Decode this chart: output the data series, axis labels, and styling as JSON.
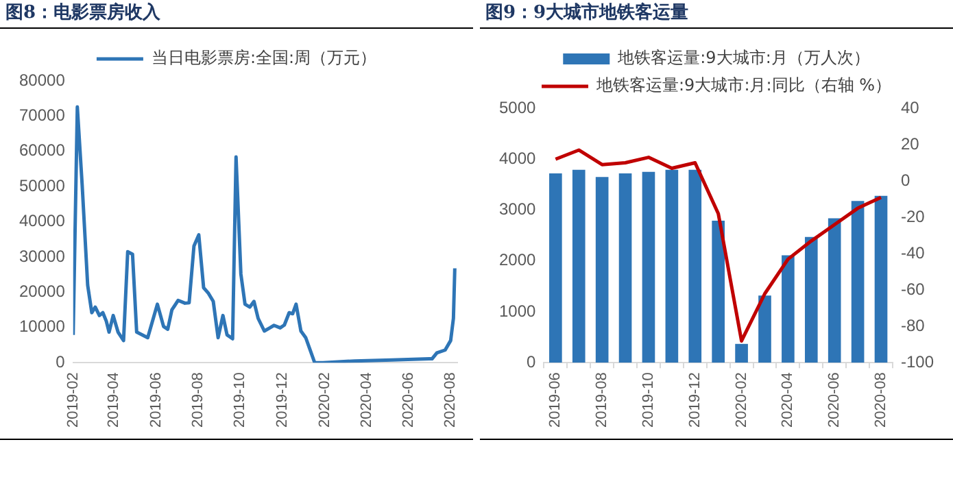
{
  "chart_data": [
    {
      "type": "line",
      "title": "图8：电影票房收入",
      "legend": "top",
      "marker": "none",
      "grid": false,
      "xlim": [
        "2019-02-01",
        "2020-08-11"
      ],
      "xticks": [
        "2019-02",
        "2019-04",
        "2019-06",
        "2019-08",
        "2019-10",
        "2019-12",
        "2020-02",
        "2020-04",
        "2020-06",
        "2020-08"
      ],
      "ylim": [
        0,
        80000
      ],
      "yticks": [
        0,
        10000,
        20000,
        30000,
        40000,
        50000,
        60000,
        70000,
        80000
      ],
      "series": [
        {
          "name": "当日电影票房:全国:周（万元）",
          "color": "#2e75b6",
          "x": [
            "2019-02-01",
            "2019-02-07",
            "2019-02-14",
            "2019-02-22",
            "2019-02-28",
            "2019-03-05",
            "2019-03-11",
            "2019-03-16",
            "2019-03-21",
            "2019-03-25",
            "2019-03-31",
            "2019-04-07",
            "2019-04-15",
            "2019-04-21",
            "2019-04-28",
            "2019-05-04",
            "2019-05-20",
            "2019-06-03",
            "2019-06-12",
            "2019-06-18",
            "2019-06-24",
            "2019-07-03",
            "2019-07-13",
            "2019-07-19",
            "2019-07-26",
            "2019-08-02",
            "2019-08-09",
            "2019-08-16",
            "2019-08-23",
            "2019-08-30",
            "2019-09-06",
            "2019-09-12",
            "2019-09-20",
            "2019-09-25",
            "2019-10-02",
            "2019-10-08",
            "2019-10-15",
            "2019-10-21",
            "2019-10-27",
            "2019-11-05",
            "2019-11-13",
            "2019-11-19",
            "2019-11-28",
            "2019-12-04",
            "2019-12-11",
            "2019-12-16",
            "2019-12-21",
            "2019-12-28",
            "2020-01-04",
            "2020-01-17",
            "2020-01-29",
            "2020-03-15",
            "2020-05-08",
            "2020-07-01",
            "2020-07-05",
            "2020-07-12",
            "2020-07-24",
            "2020-08-01",
            "2020-08-05",
            "2020-08-07"
          ],
          "values": [
            7900,
            72600,
            50500,
            22000,
            14200,
            15800,
            13400,
            14200,
            11800,
            8700,
            13400,
            8700,
            6300,
            31500,
            30800,
            8700,
            7100,
            16600,
            10300,
            9500,
            15000,
            17700,
            16900,
            17000,
            33100,
            36300,
            21300,
            19700,
            17400,
            7100,
            13400,
            7900,
            6800,
            58400,
            25200,
            16600,
            15800,
            17400,
            12600,
            9000,
            9900,
            10600,
            9900,
            10700,
            14200,
            13900,
            16600,
            9000,
            7100,
            0,
            0,
            500,
            800,
            1100,
            1100,
            2800,
            3600,
            6300,
            12600,
            26800
          ]
        }
      ]
    },
    {
      "type": "bar",
      "title": "图9：9大城市地铁客运量",
      "legend": "top",
      "grid": false,
      "categories": [
        "2019-06",
        null,
        "2019-08",
        null,
        "2019-10",
        null,
        "2019-12",
        null,
        "2020-02",
        null,
        "2020-04",
        null,
        "2020-06",
        null,
        "2020-08"
      ],
      "ylim": [
        0,
        5000
      ],
      "yticks": [
        0,
        1000,
        2000,
        3000,
        4000,
        5000
      ],
      "y2lim": [
        -100,
        40
      ],
      "y2ticks": [
        -100,
        -80,
        -60,
        -40,
        -20,
        0,
        20,
        40
      ],
      "series": [
        {
          "name": "地铁客运量:9大城市:月（万人次）",
          "type": "bar",
          "color": "#2e75b6",
          "values": [
            3720,
            3790,
            3650,
            3720,
            3750,
            3790,
            3790,
            2790,
            370,
            1320,
            2110,
            2470,
            2840,
            3180,
            3280
          ]
        },
        {
          "name": "地铁客运量:9大城市:月:同比（右轴 %）",
          "type": "line",
          "axis": "y2",
          "marker": "none",
          "color": "#c00000",
          "values": [
            12,
            17,
            9,
            10,
            13,
            7,
            10,
            -18,
            -88,
            -62,
            -43,
            -33,
            -24,
            -15,
            -9
          ]
        }
      ]
    }
  ]
}
